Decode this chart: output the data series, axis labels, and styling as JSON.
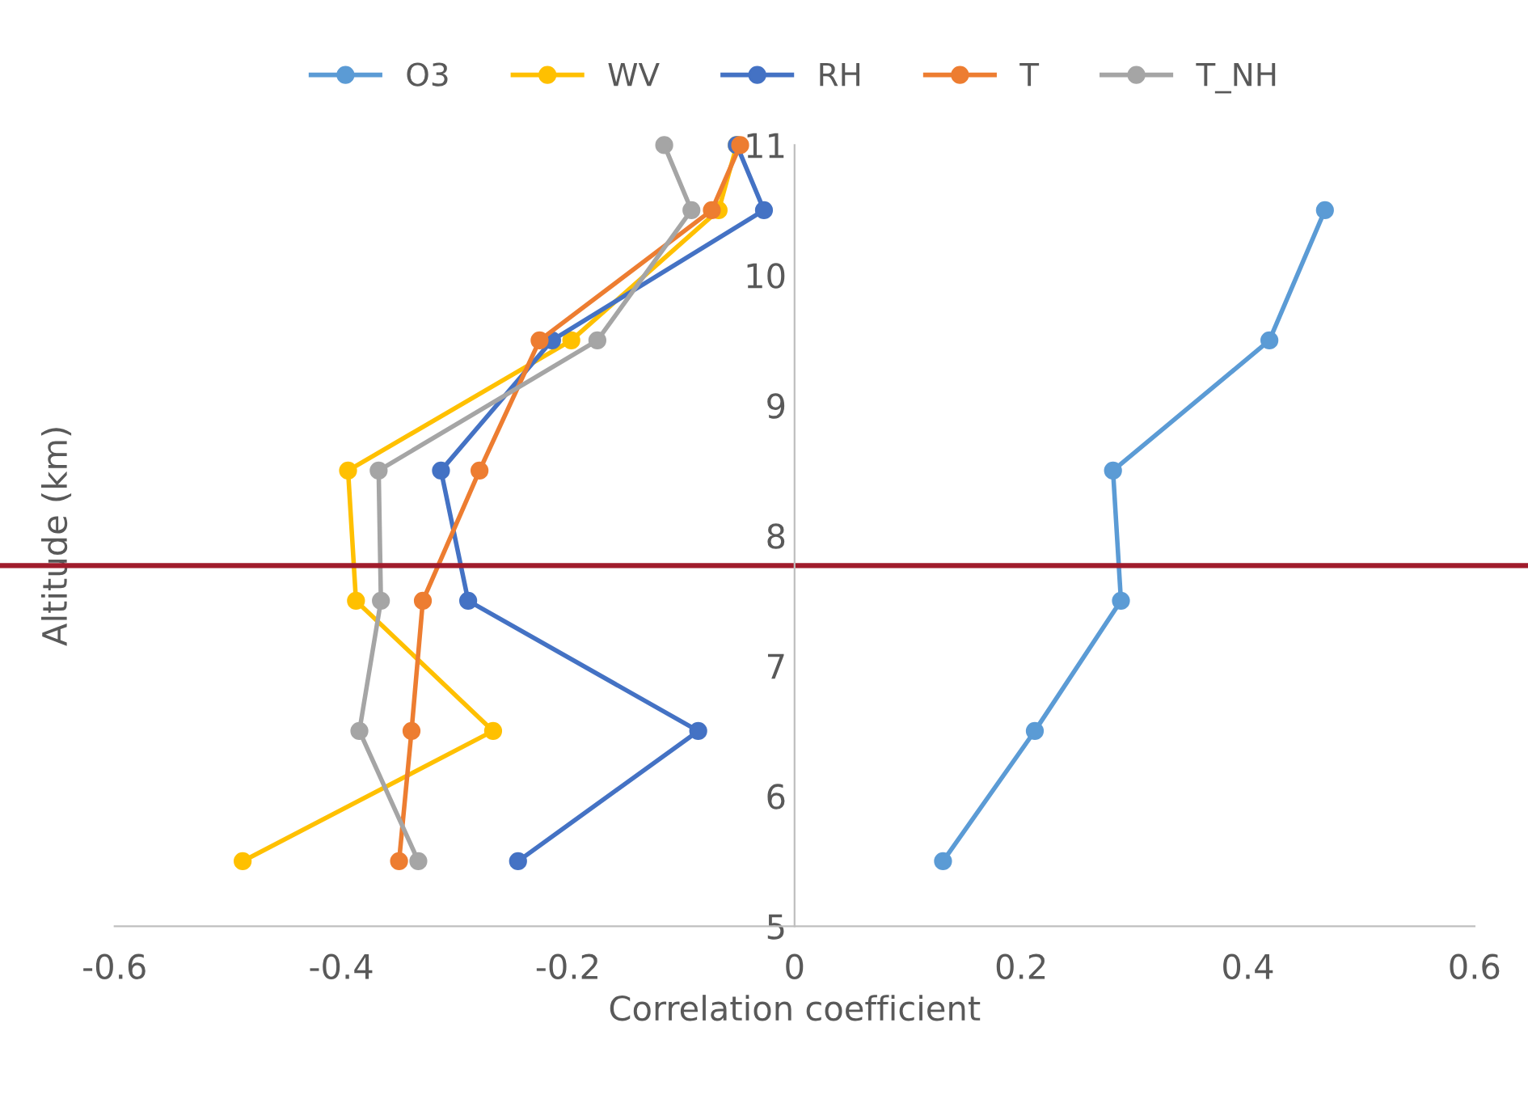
{
  "chart_data": {
    "type": "line",
    "xlabel": "Correlation coefficient",
    "ylabel": "Altitude (km)",
    "xlim": [
      -0.6,
      0.6
    ],
    "xticks": [
      -0.6,
      -0.4,
      -0.2,
      0,
      0.2,
      0.4,
      0.6
    ],
    "ylim": [
      5,
      11
    ],
    "yticks": [
      5,
      6,
      7,
      8,
      9,
      10,
      11
    ],
    "grid": false,
    "legend": "top",
    "marker": "circle",
    "line_style": "solid",
    "series": [
      {
        "name": "O3",
        "color": "#5b9bd5",
        "x": [
          0.131,
          0.212,
          0.288,
          0.281,
          0.419,
          0.468
        ],
        "values": [
          5.5,
          6.5,
          7.5,
          8.5,
          9.5,
          10.5
        ]
      },
      {
        "name": "WV",
        "color": "#ffc000",
        "x": [
          -0.487,
          -0.266,
          -0.387,
          -0.394,
          -0.197,
          -0.067,
          -0.051
        ],
        "values": [
          5.5,
          6.5,
          7.5,
          8.5,
          9.5,
          10.5,
          11
        ]
      },
      {
        "name": "RH",
        "color": "#4472c4",
        "x": [
          -0.244,
          -0.085,
          -0.288,
          -0.312,
          -0.214,
          -0.027,
          -0.051
        ],
        "values": [
          5.5,
          6.5,
          7.5,
          8.5,
          9.5,
          10.5,
          11
        ]
      },
      {
        "name": "T",
        "color": "#ed7d31",
        "x": [
          -0.349,
          -0.338,
          -0.328,
          -0.278,
          -0.225,
          -0.073,
          -0.048
        ],
        "values": [
          5.5,
          6.5,
          7.5,
          8.5,
          9.5,
          10.5,
          11
        ]
      },
      {
        "name": "T_NH",
        "color": "#a5a5a5",
        "x": [
          -0.332,
          -0.384,
          -0.365,
          -0.367,
          -0.174,
          -0.091,
          -0.115
        ],
        "values": [
          5.5,
          6.5,
          7.5,
          8.5,
          9.5,
          10.5,
          11
        ]
      }
    ],
    "ref_lines": [
      {
        "axis": "y",
        "value": 7.77,
        "color": "#a01c2c"
      }
    ]
  }
}
